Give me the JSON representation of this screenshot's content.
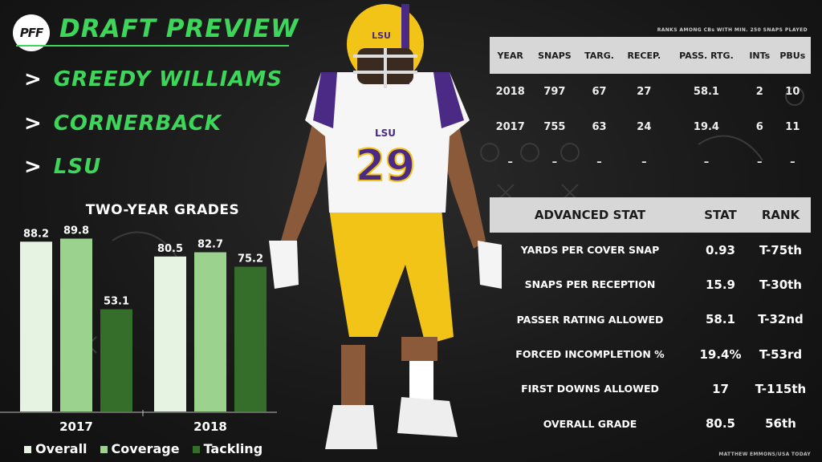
{
  "header": {
    "logo_text": "PFF",
    "title": "DRAFT PREVIEW",
    "lines": [
      {
        "chevron": ">",
        "text": "GREEDY WILLIAMS"
      },
      {
        "chevron": ">",
        "text": "CORNERBACK"
      },
      {
        "chevron": ">",
        "text": "LSU"
      }
    ]
  },
  "chart_data": {
    "type": "bar",
    "title": "TWO-YEAR GRADES",
    "categories": [
      "2017",
      "2018"
    ],
    "series": [
      {
        "name": "Overall",
        "values": [
          88.2,
          80.5
        ],
        "color": "#e6f2e2"
      },
      {
        "name": "Coverage",
        "values": [
          89.8,
          82.7
        ],
        "color": "#9bd28e"
      },
      {
        "name": "Tackling",
        "values": [
          53.1,
          75.2
        ],
        "color": "#356e2b"
      }
    ],
    "ylim": [
      0,
      100
    ],
    "grid": false,
    "legend": "bottom"
  },
  "stats_table": {
    "note": "RANKS AMONG CBs WITH MIN. 250 SNAPS PLAYED",
    "headers": [
      "YEAR",
      "SNAPS",
      "TARG.",
      "RECEP.",
      "PASS. RTG.",
      "INTs",
      "PBUs"
    ],
    "rows": [
      [
        "2018",
        "797",
        "67",
        "27",
        "58.1",
        "2",
        "10"
      ],
      [
        "2017",
        "755",
        "63",
        "24",
        "19.4",
        "6",
        "11"
      ],
      [
        "–",
        "–",
        "–",
        "–",
        "–",
        "–",
        "–"
      ]
    ]
  },
  "advanced": {
    "headers": [
      "ADVANCED STAT",
      "STAT",
      "RANK"
    ],
    "rows": [
      {
        "name": "YARDS PER COVER SNAP",
        "stat": "0.93",
        "rank": "T-75th"
      },
      {
        "name": "SNAPS PER RECEPTION",
        "stat": "15.9",
        "rank": "T-30th"
      },
      {
        "name": "PASSER RATING ALLOWED",
        "stat": "58.1",
        "rank": "T-32nd"
      },
      {
        "name": "FORCED INCOMPLETION %",
        "stat": "19.4%",
        "rank": "T-53rd"
      },
      {
        "name": "FIRST DOWNS ALLOWED",
        "stat": "17",
        "rank": "T-115th"
      },
      {
        "name": "OVERALL GRADE",
        "stat": "80.5",
        "rank": "56th"
      }
    ]
  },
  "player": {
    "jersey_team": "LSU",
    "jersey_number": "29",
    "helmet_text": "LSU"
  },
  "credit": "MATTHEW EMMONS/USA TODAY",
  "colors": {
    "accent_green": "#3ed65a",
    "lsu_purple": "#4b2a86",
    "lsu_gold": "#f2c418"
  }
}
